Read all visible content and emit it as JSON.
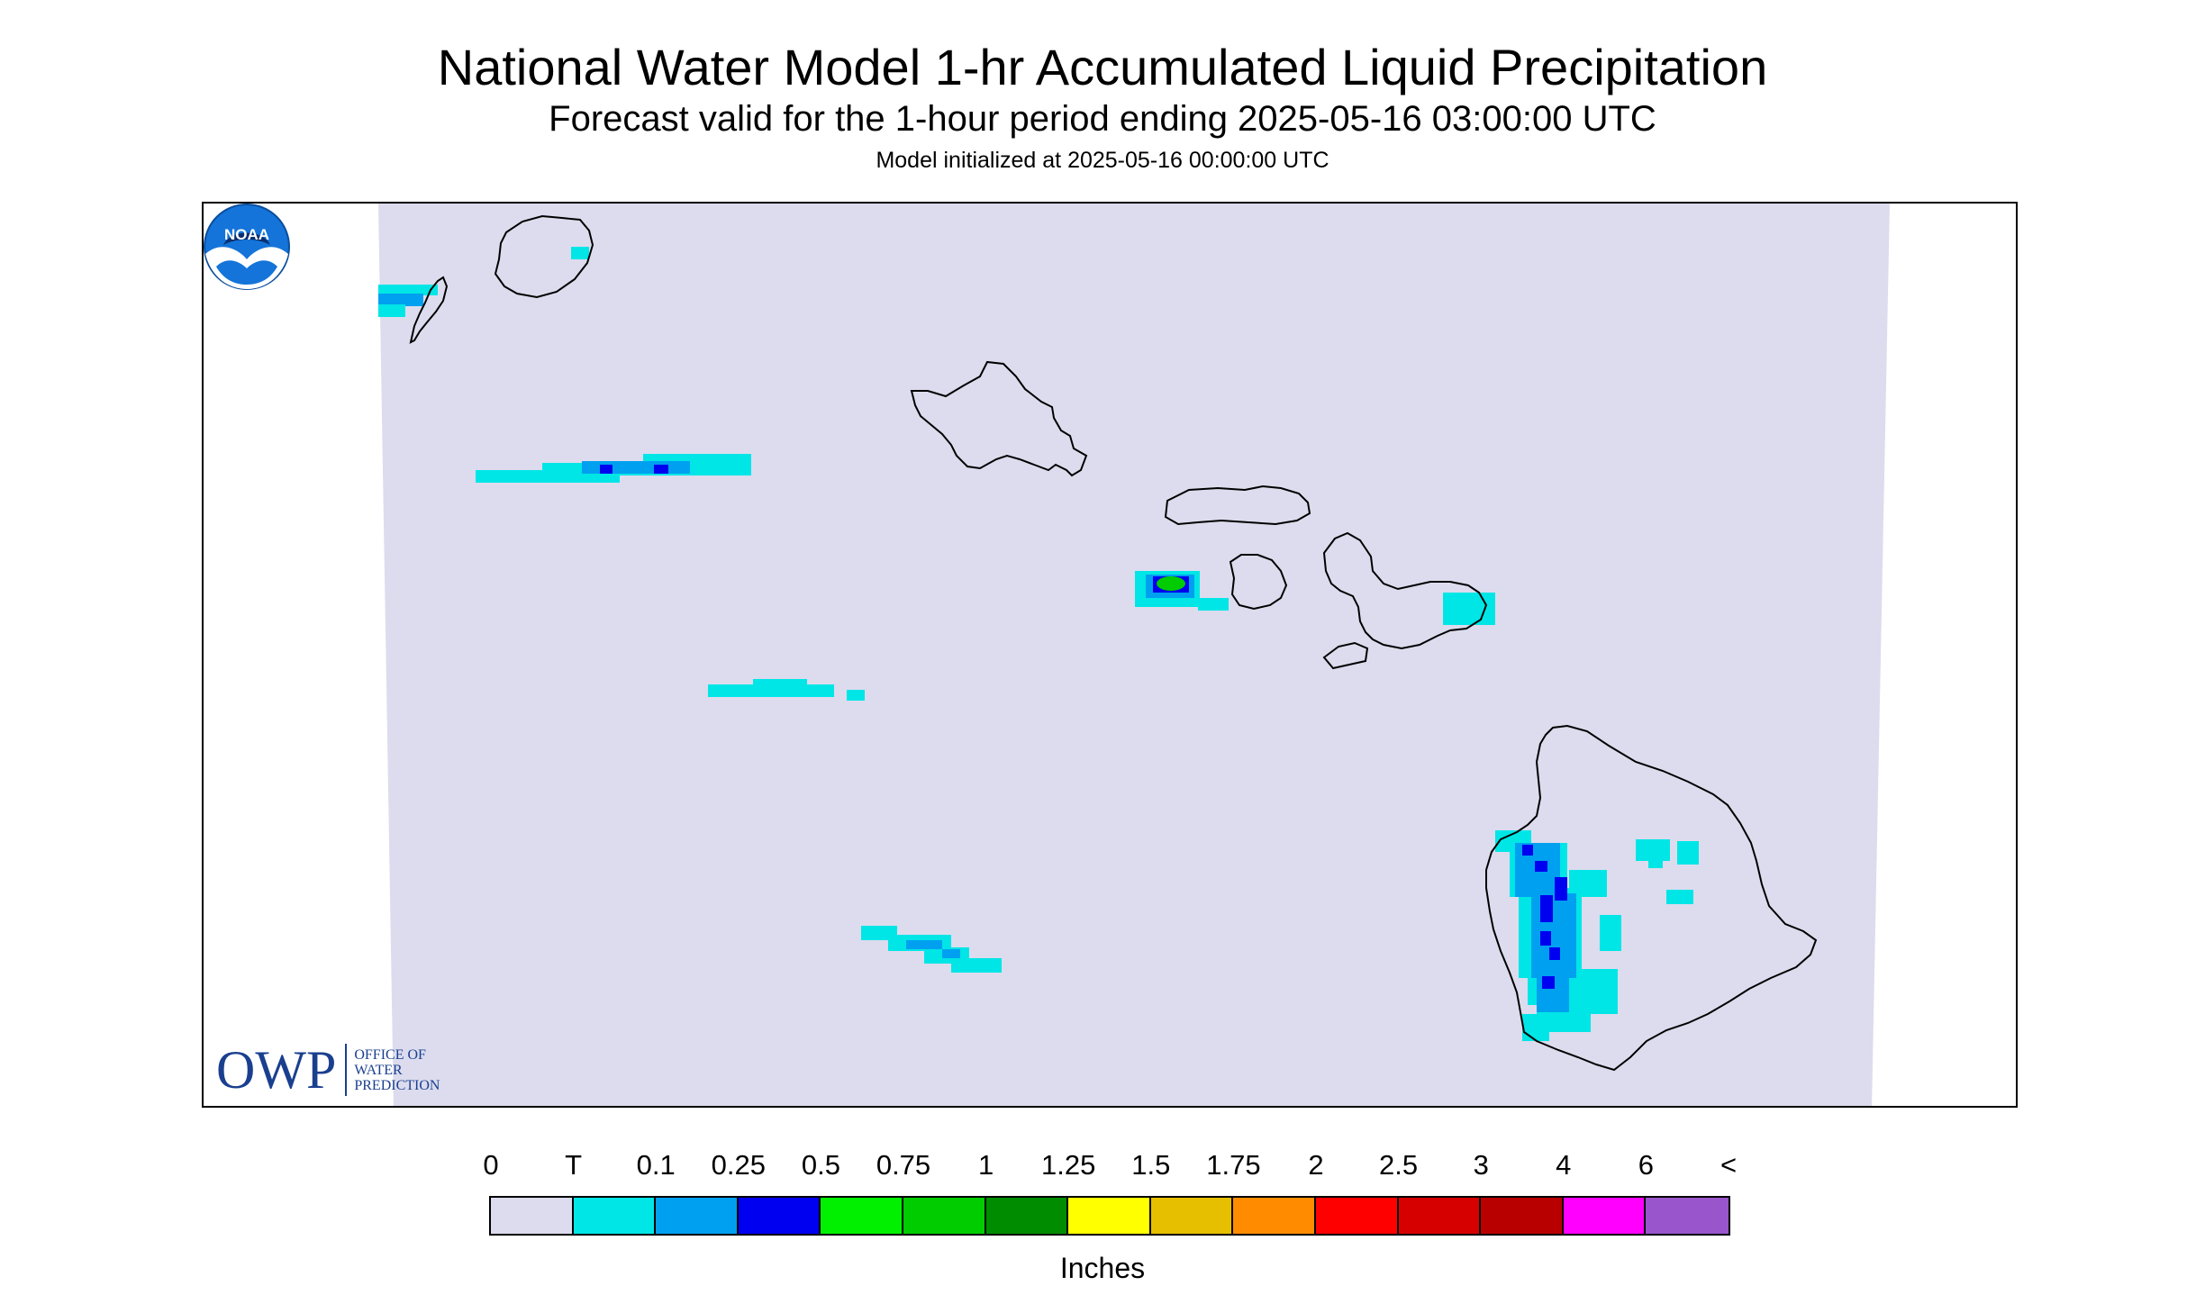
{
  "header": {
    "title": "National Water Model 1-hr Accumulated Liquid Precipitation",
    "subtitle": "Forecast valid for the 1-hour period ending 2025-05-16 03:00:00 UTC",
    "init": "Model initialized at 2025-05-16 00:00:00 UTC"
  },
  "map": {
    "domain_fill": "#dcdcee",
    "outline_color": "#000000",
    "islands": [
      "Niihau",
      "Kauai",
      "Oahu",
      "Molokai",
      "Lanai",
      "Maui",
      "Kahoolawe",
      "Hawaii"
    ]
  },
  "logos": {
    "owp_letters": "OWP",
    "owp_line1": "OFFICE OF",
    "owp_line2": "WATER",
    "owp_line3": "PREDICTION",
    "noaa_text": "NOAA"
  },
  "legend": {
    "labels": [
      "0",
      "T",
      "0.1",
      "0.25",
      "0.5",
      "0.75",
      "1",
      "1.25",
      "1.5",
      "1.75",
      "2",
      "2.5",
      "3",
      "4",
      "6",
      "<"
    ],
    "colors": [
      "#dcdcee",
      "#00e6e6",
      "#00a0f0",
      "#0000f0",
      "#00f000",
      "#00cc00",
      "#008c00",
      "#ffff00",
      "#e6c000",
      "#ff8c00",
      "#ff0000",
      "#d70000",
      "#b90000",
      "#ff00ff",
      "#9955cc"
    ],
    "units": "Inches"
  }
}
